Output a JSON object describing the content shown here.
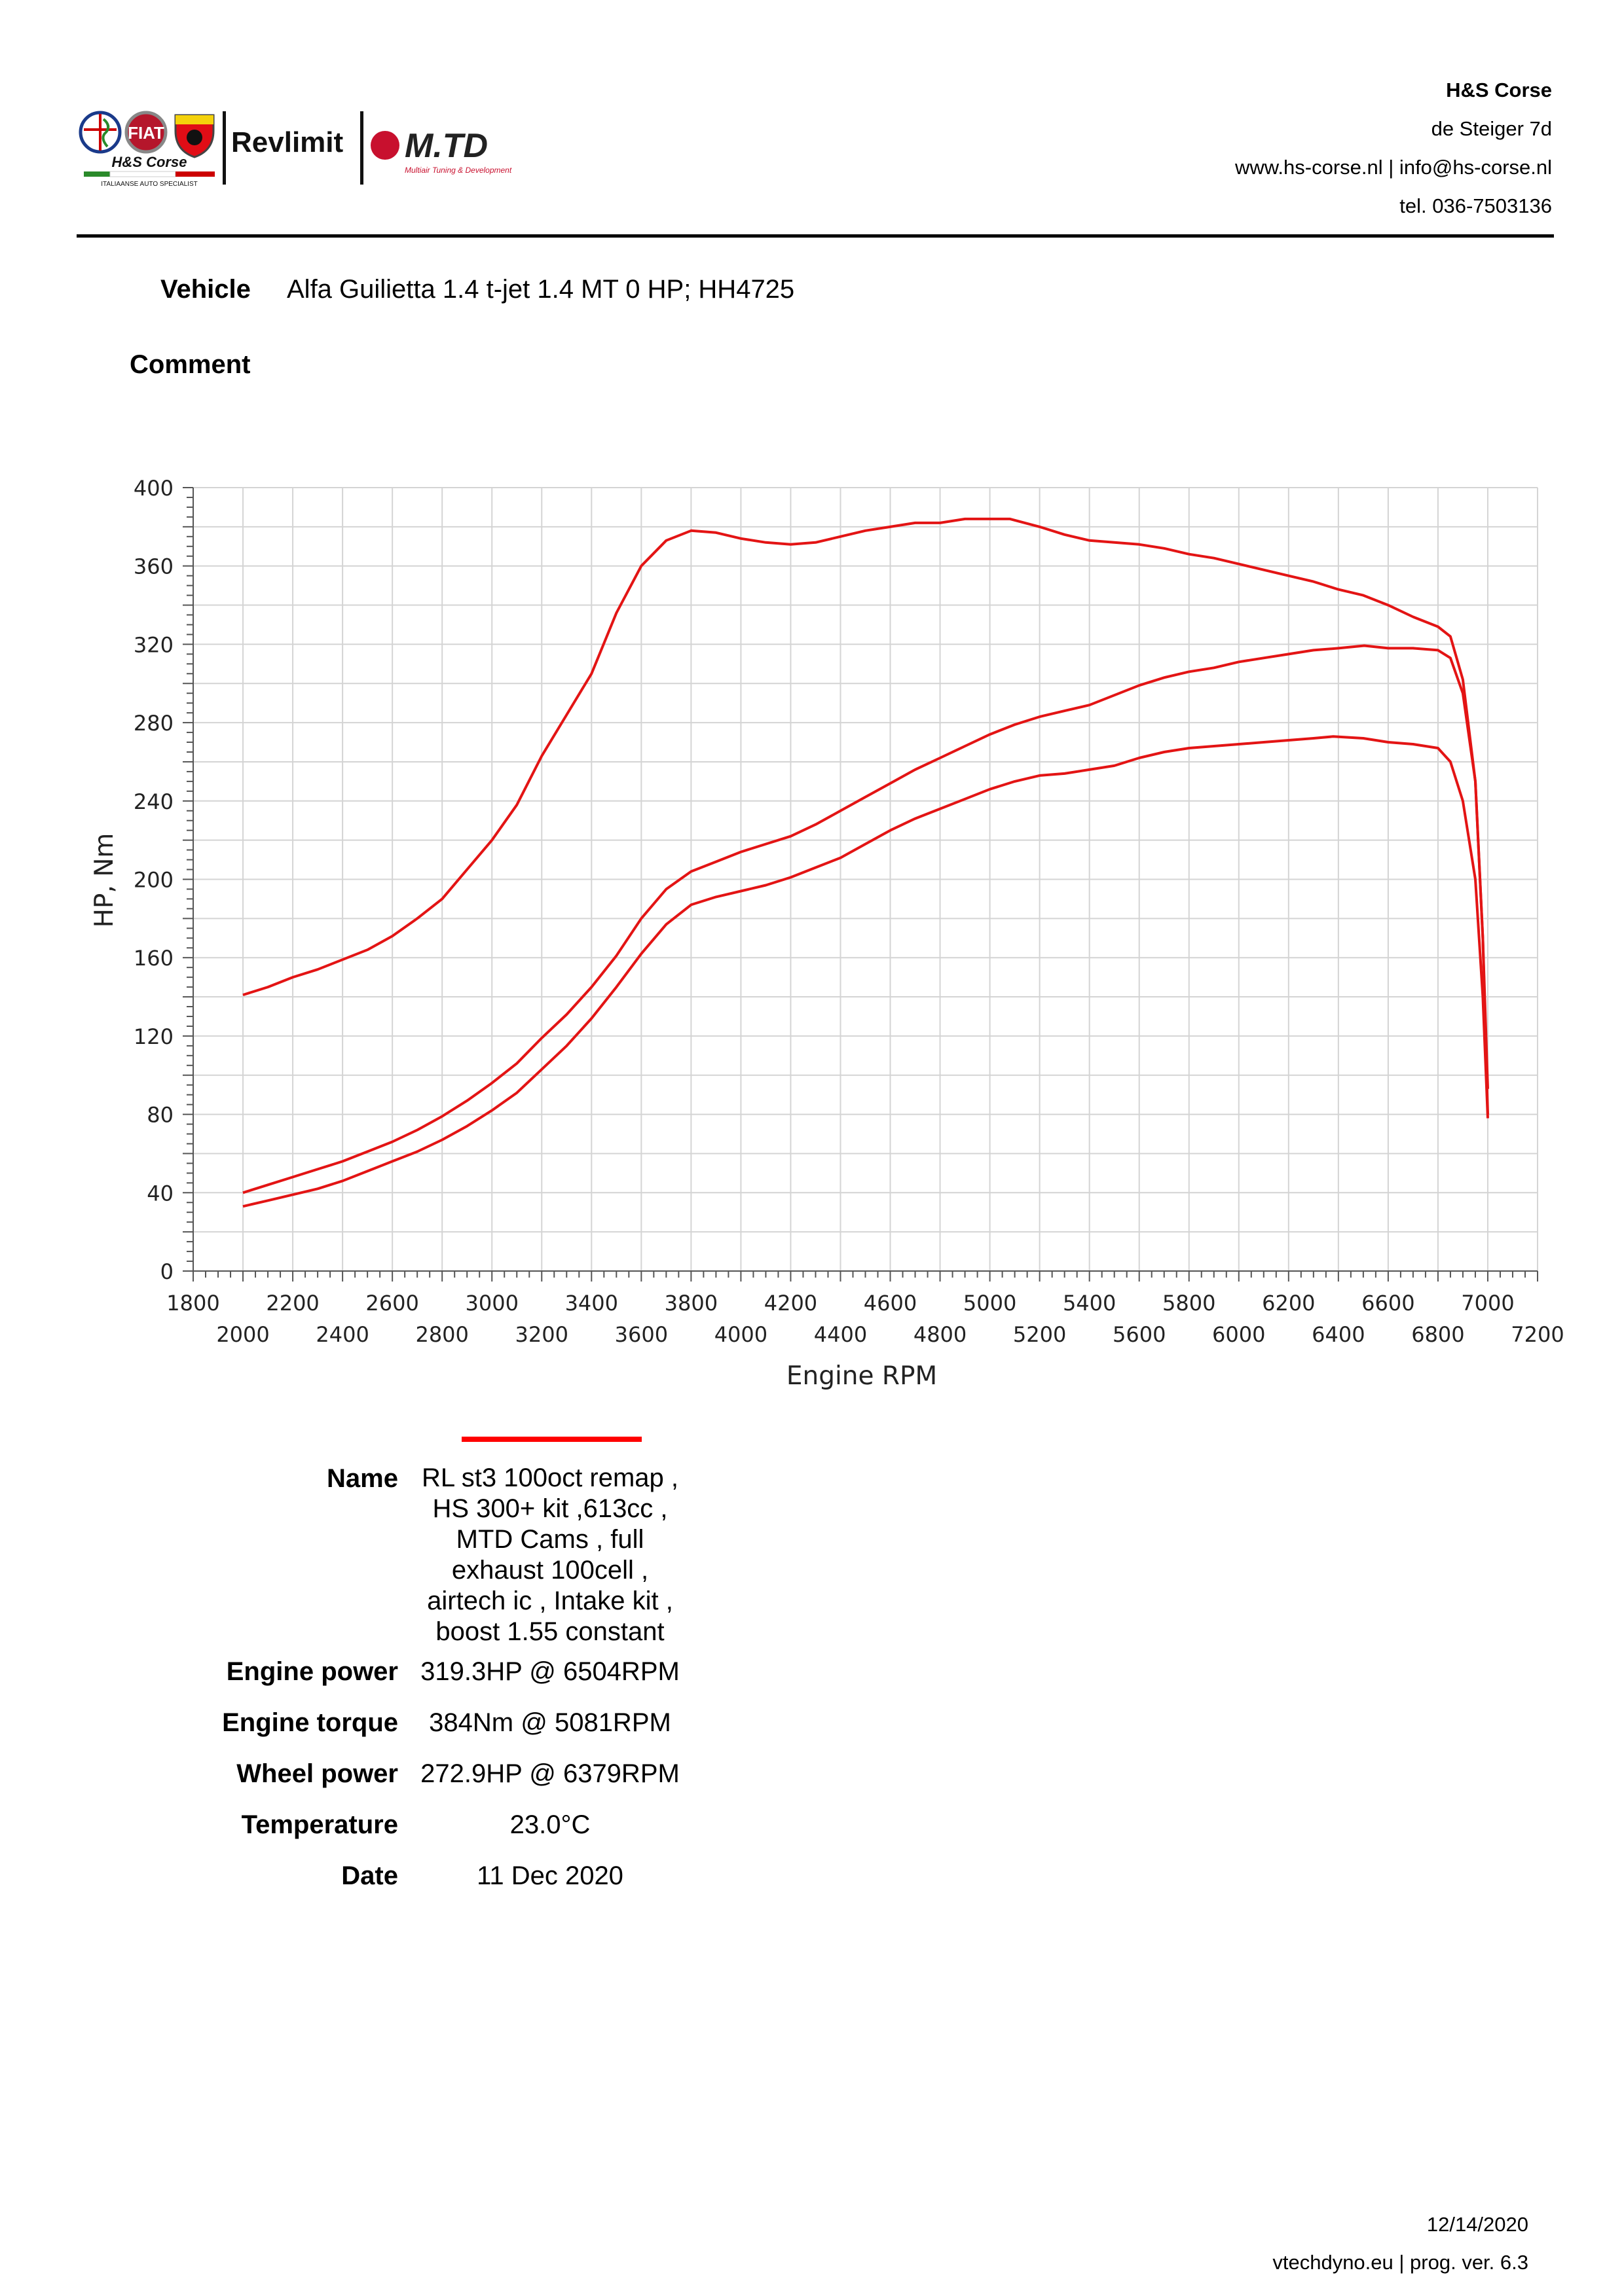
{
  "header": {
    "logos": {
      "hs_corse": "H&S Corse",
      "hs_tagline": "ITALIAANSE AUTO SPECIALIST",
      "revlimit": "Revlimit",
      "mtd": "M.TD",
      "mtd_tagline": "Multiair Tuning & Development"
    },
    "company": {
      "name": "H&S Corse",
      "street": "de Steiger 7d",
      "web_mail": "www.hs-corse.nl | info@hs-corse.nl",
      "phone": "tel. 036-7503136"
    }
  },
  "vehicle": {
    "label": "Vehicle",
    "value": "Alfa Guilietta 1.4 t-jet 1.4 MT 0 HP; HH4725"
  },
  "comment": {
    "label": "Comment",
    "value": ""
  },
  "chart_data": {
    "type": "line",
    "xlabel": "Engine RPM",
    "ylabel": "HP, Nm",
    "xlim": [
      1800,
      7200
    ],
    "ylim": [
      0,
      400
    ],
    "xticks_top": [
      "1800",
      "2200",
      "2600",
      "3000",
      "3400",
      "3800",
      "4200",
      "4600",
      "5000",
      "5400",
      "5800",
      "6200",
      "6600",
      "7000"
    ],
    "xticks_bottom": [
      "2000",
      "2400",
      "2800",
      "3200",
      "3600",
      "4000",
      "4400",
      "4800",
      "5200",
      "5600",
      "6000",
      "6400",
      "6800",
      "7200"
    ],
    "yticks": [
      "0",
      "40",
      "80",
      "120",
      "160",
      "200",
      "240",
      "280",
      "320",
      "360",
      "400"
    ],
    "grid": true,
    "line_color": "#e31414",
    "series": [
      {
        "key": "torque",
        "points": [
          [
            2000,
            141
          ],
          [
            2100,
            145
          ],
          [
            2200,
            150
          ],
          [
            2300,
            154
          ],
          [
            2400,
            159
          ],
          [
            2500,
            164
          ],
          [
            2600,
            171
          ],
          [
            2700,
            180
          ],
          [
            2800,
            190
          ],
          [
            2900,
            205
          ],
          [
            3000,
            220
          ],
          [
            3100,
            238
          ],
          [
            3200,
            263
          ],
          [
            3300,
            284
          ],
          [
            3400,
            305
          ],
          [
            3500,
            336
          ],
          [
            3600,
            360
          ],
          [
            3700,
            373
          ],
          [
            3800,
            378
          ],
          [
            3900,
            377
          ],
          [
            4000,
            374
          ],
          [
            4100,
            372
          ],
          [
            4200,
            371
          ],
          [
            4300,
            372
          ],
          [
            4400,
            375
          ],
          [
            4500,
            378
          ],
          [
            4600,
            380
          ],
          [
            4700,
            382
          ],
          [
            4800,
            382
          ],
          [
            4900,
            384
          ],
          [
            5000,
            384
          ],
          [
            5081,
            384
          ],
          [
            5200,
            380
          ],
          [
            5300,
            376
          ],
          [
            5400,
            373
          ],
          [
            5500,
            372
          ],
          [
            5600,
            371
          ],
          [
            5700,
            369
          ],
          [
            5800,
            366
          ],
          [
            5900,
            364
          ],
          [
            6000,
            361
          ],
          [
            6100,
            358
          ],
          [
            6200,
            355
          ],
          [
            6300,
            352
          ],
          [
            6400,
            348
          ],
          [
            6500,
            345
          ],
          [
            6600,
            340
          ],
          [
            6700,
            334
          ],
          [
            6800,
            329
          ],
          [
            6850,
            324
          ],
          [
            6900,
            302
          ],
          [
            6950,
            250
          ],
          [
            6980,
            170
          ],
          [
            7000,
            93
          ]
        ]
      },
      {
        "key": "engine_power",
        "points": [
          [
            2000,
            40
          ],
          [
            2100,
            44
          ],
          [
            2200,
            48
          ],
          [
            2300,
            52
          ],
          [
            2400,
            56
          ],
          [
            2500,
            61
          ],
          [
            2600,
            66
          ],
          [
            2700,
            72
          ],
          [
            2800,
            79
          ],
          [
            2900,
            87
          ],
          [
            3000,
            96
          ],
          [
            3100,
            106
          ],
          [
            3200,
            119
          ],
          [
            3300,
            131
          ],
          [
            3400,
            145
          ],
          [
            3500,
            161
          ],
          [
            3600,
            180
          ],
          [
            3700,
            195
          ],
          [
            3800,
            204
          ],
          [
            3900,
            209
          ],
          [
            4000,
            214
          ],
          [
            4100,
            218
          ],
          [
            4200,
            222
          ],
          [
            4300,
            228
          ],
          [
            4400,
            235
          ],
          [
            4500,
            242
          ],
          [
            4600,
            249
          ],
          [
            4700,
            256
          ],
          [
            4800,
            262
          ],
          [
            4900,
            268
          ],
          [
            5000,
            274
          ],
          [
            5100,
            279
          ],
          [
            5200,
            283
          ],
          [
            5300,
            286
          ],
          [
            5400,
            289
          ],
          [
            5500,
            294
          ],
          [
            5600,
            299
          ],
          [
            5700,
            303
          ],
          [
            5800,
            306
          ],
          [
            5900,
            308
          ],
          [
            6000,
            311
          ],
          [
            6100,
            313
          ],
          [
            6200,
            315
          ],
          [
            6300,
            317
          ],
          [
            6400,
            318
          ],
          [
            6504,
            319.3
          ],
          [
            6600,
            318
          ],
          [
            6700,
            318
          ],
          [
            6800,
            317
          ],
          [
            6850,
            313
          ],
          [
            6900,
            295
          ],
          [
            6950,
            250
          ],
          [
            6980,
            170
          ],
          [
            7000,
            80
          ]
        ]
      },
      {
        "key": "wheel_power",
        "points": [
          [
            2000,
            33
          ],
          [
            2100,
            36
          ],
          [
            2200,
            39
          ],
          [
            2300,
            42
          ],
          [
            2400,
            46
          ],
          [
            2500,
            51
          ],
          [
            2600,
            56
          ],
          [
            2700,
            61
          ],
          [
            2800,
            67
          ],
          [
            2900,
            74
          ],
          [
            3000,
            82
          ],
          [
            3100,
            91
          ],
          [
            3200,
            103
          ],
          [
            3300,
            115
          ],
          [
            3400,
            129
          ],
          [
            3500,
            145
          ],
          [
            3600,
            162
          ],
          [
            3700,
            177
          ],
          [
            3800,
            187
          ],
          [
            3900,
            191
          ],
          [
            4000,
            194
          ],
          [
            4100,
            197
          ],
          [
            4200,
            201
          ],
          [
            4300,
            206
          ],
          [
            4400,
            211
          ],
          [
            4500,
            218
          ],
          [
            4600,
            225
          ],
          [
            4700,
            231
          ],
          [
            4800,
            236
          ],
          [
            4900,
            241
          ],
          [
            5000,
            246
          ],
          [
            5100,
            250
          ],
          [
            5200,
            253
          ],
          [
            5300,
            254
          ],
          [
            5400,
            256
          ],
          [
            5500,
            258
          ],
          [
            5600,
            262
          ],
          [
            5700,
            265
          ],
          [
            5800,
            267
          ],
          [
            5900,
            268
          ],
          [
            6000,
            269
          ],
          [
            6100,
            270
          ],
          [
            6200,
            271
          ],
          [
            6300,
            272
          ],
          [
            6379,
            272.9
          ],
          [
            6500,
            272
          ],
          [
            6600,
            270
          ],
          [
            6700,
            269
          ],
          [
            6800,
            267
          ],
          [
            6850,
            260
          ],
          [
            6900,
            240
          ],
          [
            6950,
            200
          ],
          [
            6980,
            140
          ],
          [
            7000,
            78
          ]
        ]
      }
    ]
  },
  "summary": {
    "name_label": "Name",
    "name_lines": [
      "RL st3 100oct remap ,",
      "HS 300+ kit ,613cc ,",
      "MTD Cams ,  full",
      "exhaust 100cell ,",
      "airtech ic , Intake kit ,",
      "boost 1.55 constant"
    ],
    "engine_power_label": "Engine power",
    "engine_power": "319.3HP @  6504RPM",
    "engine_torque_label": "Engine torque",
    "engine_torque": "384Nm @ 5081RPM",
    "wheel_power_label": "Wheel power",
    "wheel_power": "272.9HP @  6379RPM",
    "temperature_label": "Temperature",
    "temperature": "23.0°C",
    "date_label": "Date",
    "date": "11 Dec 2020",
    "legend_color": "#ff0000"
  },
  "footer": {
    "print_date": "12/14/2020",
    "program": "vtechdyno.eu | prog. ver. 6.3"
  }
}
